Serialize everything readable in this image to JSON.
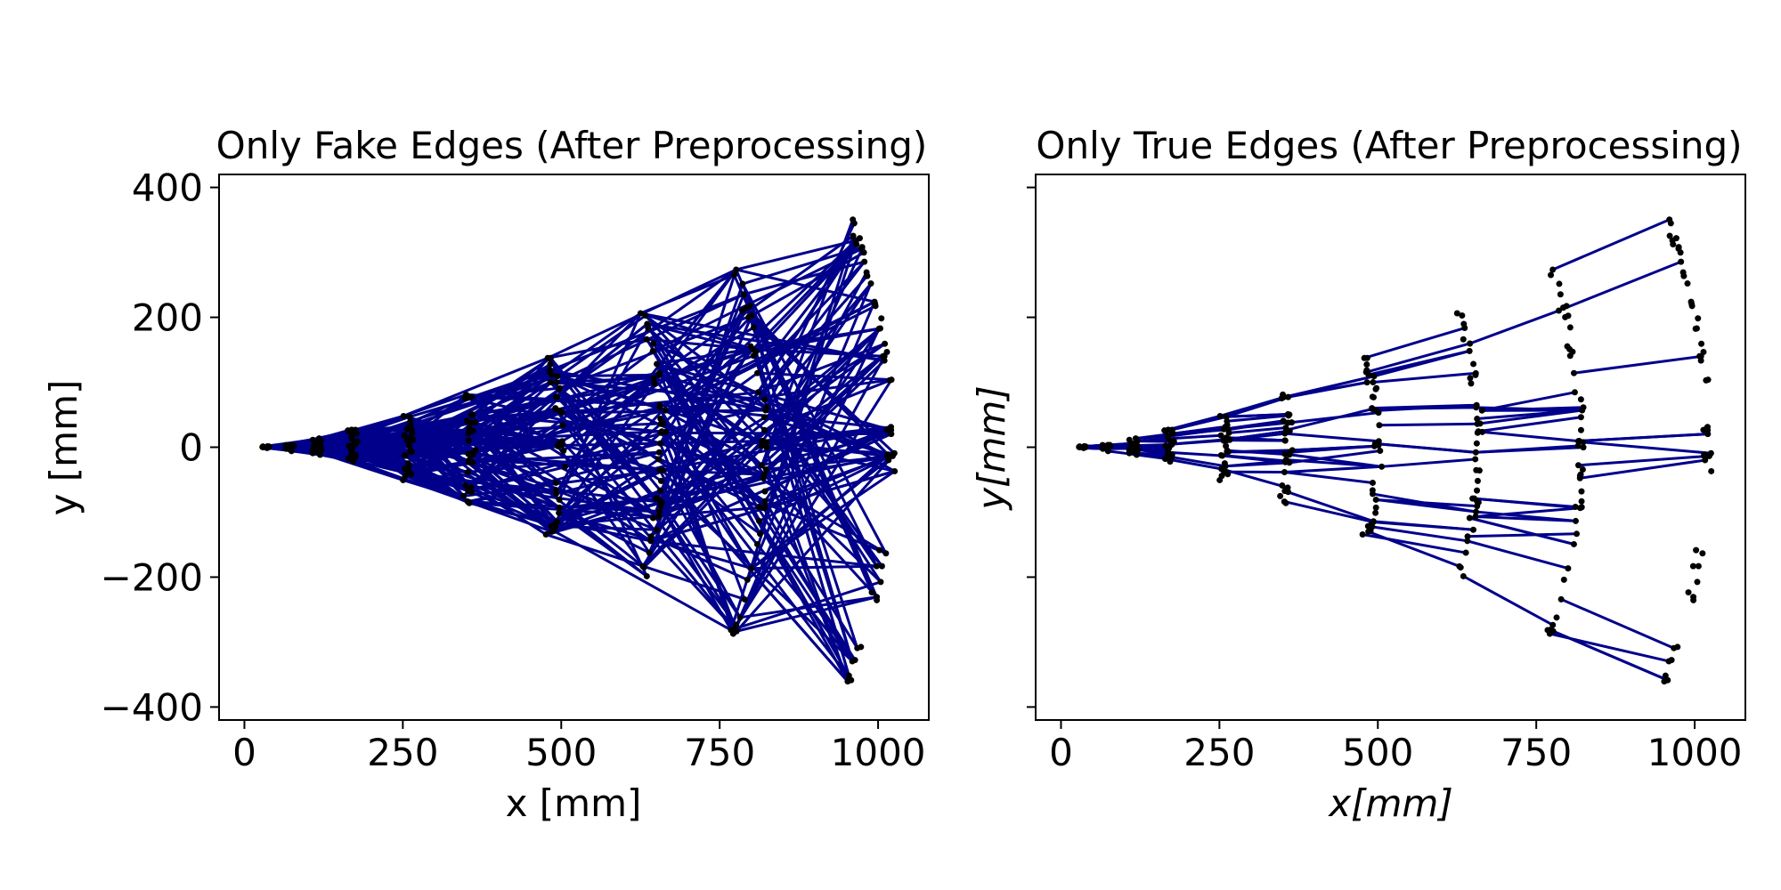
{
  "chart_data": [
    {
      "type": "scatter",
      "title": "Only Fake Edges (After Preprocessing)",
      "xlabel": "x [mm]",
      "ylabel": "y [mm]",
      "xlim": [
        -40,
        1080
      ],
      "ylim": [
        -420,
        420
      ],
      "xticks": [
        0,
        250,
        500,
        750,
        1000
      ],
      "xtick_labels": [
        "0",
        "250",
        "500",
        "750",
        "1000"
      ],
      "yticks": [
        -400,
        -200,
        0,
        200,
        400
      ],
      "ytick_labels": [
        "−400",
        "−200",
        "0",
        "200",
        "400"
      ],
      "show_ytick_labels": true,
      "grid": false,
      "edge_color": "#00008b",
      "hit_color": "#000000",
      "layer_radii": [
        32,
        72,
        115,
        172,
        260,
        360,
        500,
        660,
        820,
        1020
      ],
      "edge_mode": "fake",
      "edge_count": 720
    },
    {
      "type": "scatter",
      "title": "Only True Edges (After Preprocessing)",
      "xlabel": "x[mm]",
      "ylabel": "y[mm]",
      "xlim": [
        -40,
        1080
      ],
      "ylim": [
        -420,
        420
      ],
      "xticks": [
        0,
        250,
        500,
        750,
        1000
      ],
      "xtick_labels": [
        "0",
        "250",
        "500",
        "750",
        "1000"
      ],
      "yticks": [
        -400,
        -200,
        0,
        200,
        400
      ],
      "ytick_labels": [
        "",
        "",
        "",
        "",
        ""
      ],
      "show_ytick_labels": false,
      "grid": false,
      "edge_color": "#00008b",
      "hit_color": "#000000",
      "layer_radii": [
        32,
        72,
        115,
        172,
        260,
        360,
        500,
        660,
        820,
        1020
      ],
      "edge_mode": "true",
      "edge_count": 170
    }
  ]
}
